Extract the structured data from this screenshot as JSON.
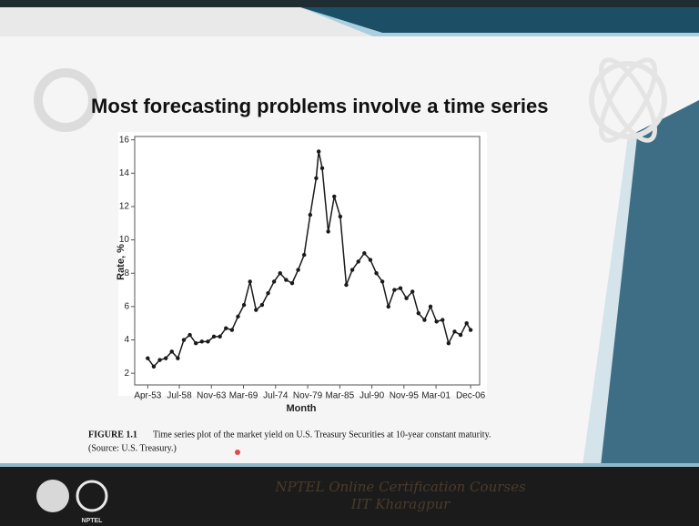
{
  "slide_title": "Most forecasting problems involve a time series",
  "caption": {
    "label": "FIGURE 1.1",
    "text": "Time series plot of the market yield on U.S. Treasury Securities at 10-year constant maturity.",
    "source": "(Source: U.S. Treasury.)"
  },
  "footer": {
    "line1": "NPTEL Online Certification Courses",
    "line2": "IIT Kharagpur",
    "logo_label": "NPTEL"
  },
  "chart_data": {
    "type": "line",
    "x_label": "Month",
    "y_label": "Rate, %",
    "x": [
      "Apr-53",
      "Apr-54",
      "Apr-55",
      "Apr-56",
      "Apr-57",
      "Apr-58",
      "Apr-59",
      "Apr-60",
      "Apr-61",
      "Apr-62",
      "Apr-63",
      "Apr-64",
      "Apr-65",
      "Apr-66",
      "Apr-67",
      "Apr-68",
      "Apr-69",
      "Apr-70",
      "Apr-71",
      "Apr-72",
      "Apr-73",
      "Apr-74",
      "Apr-75",
      "Apr-76",
      "Apr-77",
      "Apr-78",
      "Apr-79",
      "Apr-80",
      "Apr-81",
      "Sep-81",
      "Apr-82",
      "Apr-83",
      "Apr-84",
      "Apr-85",
      "Apr-86",
      "Apr-87",
      "Apr-88",
      "Apr-89",
      "Apr-90",
      "Apr-91",
      "Apr-92",
      "Apr-93",
      "Apr-94",
      "Apr-95",
      "Apr-96",
      "Apr-97",
      "Apr-98",
      "Apr-99",
      "Apr-00",
      "Apr-01",
      "Apr-02",
      "Apr-03",
      "Apr-04",
      "Apr-05",
      "Apr-06",
      "Dec-06"
    ],
    "values": [
      2.9,
      2.4,
      2.8,
      2.9,
      3.3,
      2.9,
      4.0,
      4.3,
      3.8,
      3.9,
      3.9,
      4.2,
      4.2,
      4.7,
      4.6,
      5.4,
      6.1,
      7.5,
      5.8,
      6.1,
      6.8,
      7.5,
      8.0,
      7.6,
      7.4,
      8.2,
      9.1,
      11.5,
      13.7,
      15.3,
      14.3,
      10.5,
      12.6,
      11.4,
      7.3,
      8.2,
      8.7,
      9.2,
      8.8,
      8.0,
      7.5,
      6.0,
      7.0,
      7.1,
      6.5,
      6.9,
      5.6,
      5.2,
      6.0,
      5.1,
      5.2,
      3.8,
      4.5,
      4.3,
      5.0,
      4.6
    ],
    "color": "#1a1a1a",
    "xlim": [
      "Feb-51",
      "Jun-08"
    ],
    "xticks": [
      "Apr-53",
      "Jul-58",
      "Nov-63",
      "Mar-69",
      "Jul-74",
      "Nov-79",
      "Mar-85",
      "Jul-90",
      "Nov-95",
      "Mar-01",
      "Dec-06"
    ],
    "ylim": [
      1.3,
      16.2
    ],
    "yticks": [
      2,
      4,
      6,
      8,
      10,
      12,
      14,
      16
    ],
    "markers": true
  }
}
